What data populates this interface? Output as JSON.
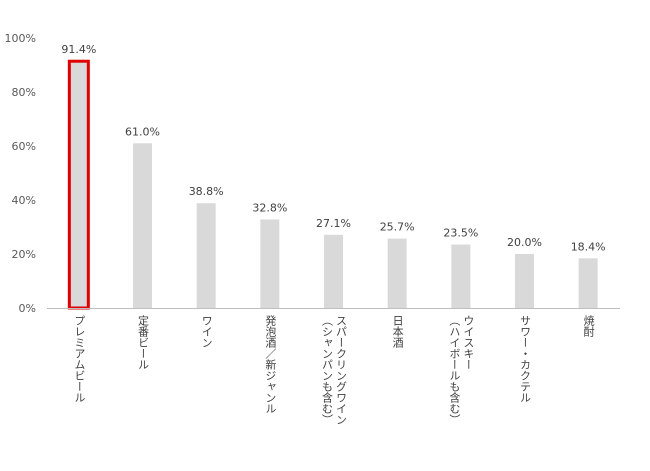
{
  "chart_data": {
    "type": "bar",
    "title": "",
    "xlabel": "",
    "ylabel": "",
    "ylim": [
      0,
      100
    ],
    "yticks": [
      "0%",
      "20%",
      "40%",
      "60%",
      "80%",
      "100%"
    ],
    "grid": false,
    "legend": "none",
    "categories": [
      "プレミアムビール",
      "定番ビール",
      "ワイン",
      "発泡酒／新ジャンル",
      "スパークリングワイン（シャンパンも含む）",
      "日本酒",
      "ウイスキー（ハイボールも含む）",
      "サワー・カクテル",
      "焼酎"
    ],
    "category_lines": [
      [
        "プレミアムビール"
      ],
      [
        "定番ビール"
      ],
      [
        "ワイン"
      ],
      [
        "発泡酒／新ジャンル"
      ],
      [
        "スパークリングワイン",
        "（シャンパンも含む）"
      ],
      [
        "日本酒"
      ],
      [
        "ウイスキー",
        "（ハイボールも含む）"
      ],
      [
        "サワー・カクテル"
      ],
      [
        "焼酎"
      ]
    ],
    "values": [
      91.4,
      61.0,
      38.8,
      32.8,
      27.1,
      25.7,
      23.5,
      20.0,
      18.4
    ],
    "data_labels": [
      "91.4%",
      "61.0%",
      "38.8%",
      "32.8%",
      "27.1%",
      "25.7%",
      "23.5%",
      "20.0%",
      "18.4%"
    ],
    "highlight_index": 0,
    "colors": {
      "bar": "#d9d9d9",
      "highlight_stroke": "#e00000",
      "axis": "#bfbfbf"
    }
  }
}
